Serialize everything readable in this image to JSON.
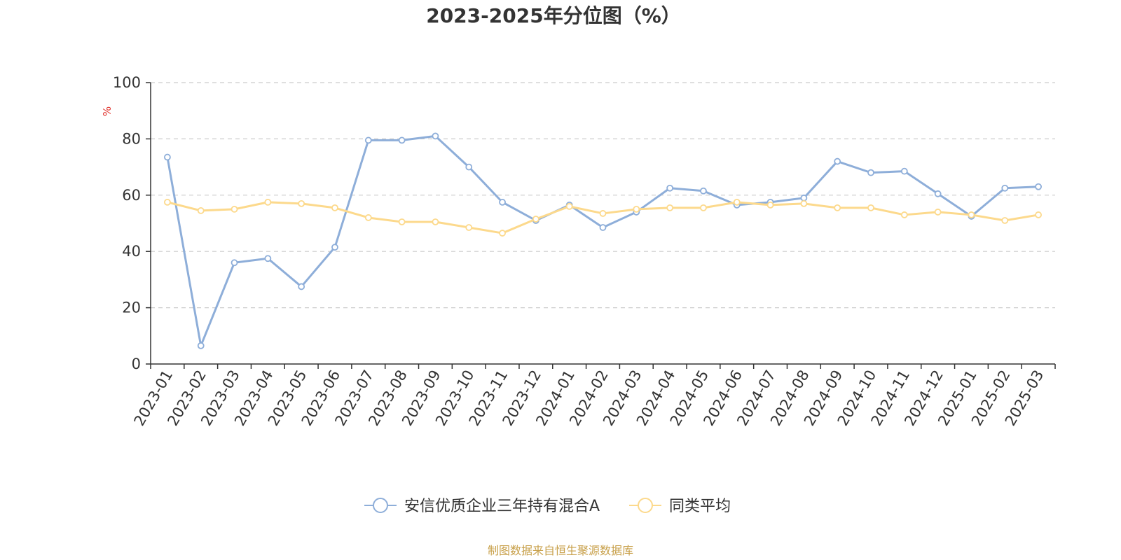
{
  "chart_data": {
    "type": "line",
    "title": "2023-2025年分位图（%）",
    "ylabel": "%",
    "ylim": [
      0,
      100
    ],
    "yticks": [
      0,
      20,
      40,
      60,
      80,
      100
    ],
    "grid": "horizontal dashed",
    "legend_position": "bottom-center",
    "categories": [
      "2023-01",
      "2023-02",
      "2023-03",
      "2023-04",
      "2023-05",
      "2023-06",
      "2023-07",
      "2023-08",
      "2023-09",
      "2023-10",
      "2023-11",
      "2023-12",
      "2024-01",
      "2024-02",
      "2024-03",
      "2024-04",
      "2024-05",
      "2024-06",
      "2024-07",
      "2024-08",
      "2024-09",
      "2024-10",
      "2024-11",
      "2024-12",
      "2025-01",
      "2025-02",
      "2025-03"
    ],
    "series": [
      {
        "name": "安信优质企业三年持有混合A",
        "color": "#8eaed9",
        "values": [
          73.5,
          6.5,
          36,
          37.5,
          27.5,
          41.5,
          79.5,
          79.5,
          81,
          70,
          57.5,
          51,
          56.5,
          48.5,
          54,
          62.5,
          61.5,
          56.5,
          57.5,
          59,
          72,
          68,
          68.5,
          60.5,
          52.5,
          62.5,
          63
        ]
      },
      {
        "name": "同类平均",
        "color": "#fcd98c",
        "values": [
          57.5,
          54.5,
          55,
          57.5,
          57,
          55.5,
          52,
          50.5,
          50.5,
          48.5,
          46.5,
          51.5,
          56,
          53.5,
          55,
          55.5,
          55.5,
          57.5,
          56.5,
          57,
          55.5,
          55.5,
          53,
          54,
          53,
          51,
          53
        ]
      }
    ]
  },
  "source": "制图数据来自恒生聚源数据库",
  "colors": {
    "axis": "#333333",
    "grid": "#cccccc",
    "ylabel": "#e0302a",
    "source": "#c8a04a"
  }
}
